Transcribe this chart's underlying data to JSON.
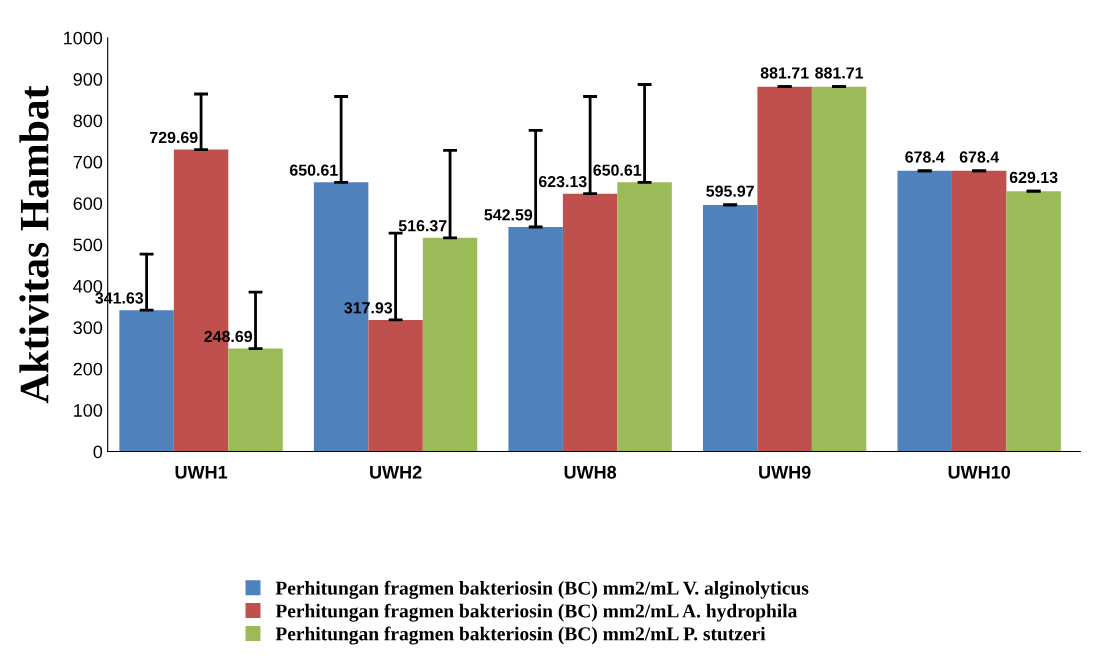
{
  "chart_data": {
    "type": "bar",
    "ylabel": "Aktivitas Hambat",
    "categories": [
      "UWH1",
      "UWH2",
      "UWH8",
      "UWH9",
      "UWH10"
    ],
    "series": [
      {
        "name": "Perhitungan fragmen bakteriosin (BC) mm2/mL V. alginolyticus",
        "color": "#4f81bd",
        "values": [
          341.63,
          650.61,
          542.59,
          595.97,
          678.4
        ],
        "errors": [
          [
            341.63,
            477
          ],
          [
            650.61,
            858
          ],
          [
            542.59,
            776
          ],
          [
            595.97,
            595.97
          ],
          [
            678.4,
            678.4
          ]
        ]
      },
      {
        "name": "Perhitungan fragmen bakteriosin (BC) mm2/mL A. hydrophila",
        "color": "#c0504d",
        "values": [
          729.69,
          317.93,
          623.13,
          881.71,
          678.4
        ],
        "errors": [
          [
            729.69,
            864
          ],
          [
            317.93,
            528
          ],
          [
            623.13,
            858
          ],
          [
            881.71,
            881.71
          ],
          [
            678.4,
            678.4
          ]
        ]
      },
      {
        "name": "Perhitungan fragmen bakteriosin (BC) mm2/mL P. stutzeri",
        "color": "#9bbb59",
        "values": [
          248.69,
          516.37,
          650.61,
          881.71,
          629.13
        ],
        "errors": [
          [
            248.69,
            385
          ],
          [
            516.37,
            728
          ],
          [
            650.61,
            887
          ],
          [
            881.71,
            881.71
          ],
          [
            629.13,
            629.13
          ]
        ]
      }
    ],
    "ylim": [
      0,
      1000
    ],
    "yticks": [
      0,
      100,
      200,
      300,
      400,
      500,
      600,
      700,
      800,
      900,
      1000
    ],
    "data_labels": true,
    "grid": false,
    "legend": "bottom"
  }
}
